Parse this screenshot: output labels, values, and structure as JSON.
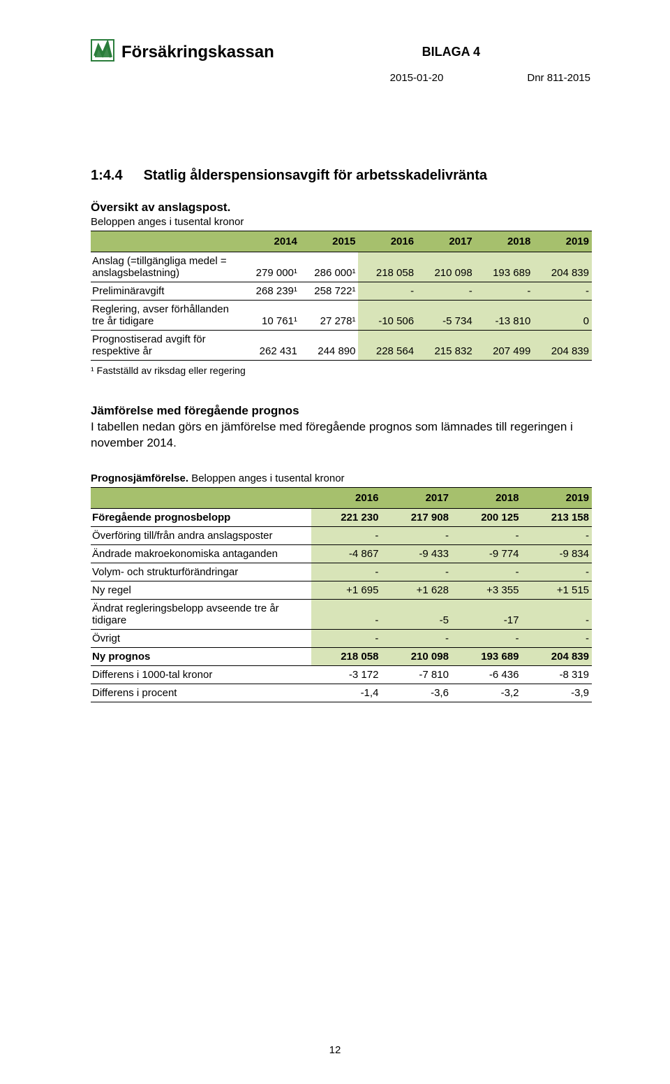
{
  "brand": "Försäkringskassan",
  "bilaga": "BILAGA 4",
  "date": "2015-01-20",
  "dnr": "Dnr 811-2015",
  "section_number": "1:4.4",
  "section_title": "Statlig ålderspensionsavgift för arbetsskadelivränta",
  "overview_heading": "Översikt av anslagspost.",
  "overview_caption": "Beloppen anges i tusental kronor",
  "table1": {
    "header_bg": "#a6c06d",
    "shade_bg": "#d8e4b8",
    "border_color": "#000000",
    "col_widths": [
      "30%",
      "11.6%",
      "11.6%",
      "11.6%",
      "11.6%",
      "11.6%",
      "11.6%"
    ],
    "head": [
      "",
      "2014",
      "2015",
      "2016",
      "2017",
      "2018",
      "2019"
    ],
    "rows": [
      {
        "label": "Anslag (=tillgängliga medel = anslagsbelastning)",
        "cells": [
          "279 000¹",
          "286 000¹",
          "218 058",
          "210 098",
          "193 689",
          "204 839"
        ],
        "shade_from": 2
      },
      {
        "label": "Preliminäravgift",
        "cells": [
          "268 239¹",
          "258 722¹",
          "-",
          "-",
          "-",
          "-"
        ],
        "shade_from": 2
      },
      {
        "label": "Reglering, avser förhållanden tre år tidigare",
        "cells": [
          "10 761¹",
          "27 278¹",
          "-10 506",
          "-5 734",
          "-13 810",
          "0"
        ],
        "shade_from": 2
      },
      {
        "label": "Prognostiserad avgift för respektive år",
        "cells": [
          "262 431",
          "244 890",
          "228 564",
          "215 832",
          "207 499",
          "204 839"
        ],
        "shade_from": 2
      }
    ]
  },
  "footnote1": "¹ Fastställd av riksdag eller regering",
  "compare_heading": "Jämförelse med föregående prognos",
  "compare_para": "I tabellen nedan görs en jämförelse med föregående prognos som lämnades till regeringen i november 2014.",
  "compare_caption_bold": "Prognosjämförelse.",
  "compare_caption_rest": " Beloppen anges i tusental kronor",
  "table2": {
    "header_bg": "#a6c06d",
    "shade_bg": "#d8e4b8",
    "border_color": "#000000",
    "col_widths": [
      "44%",
      "14%",
      "14%",
      "14%",
      "14%"
    ],
    "head": [
      "",
      "2016",
      "2017",
      "2018",
      "2019"
    ],
    "rows": [
      {
        "label": "Föregående prognosbelopp",
        "cells": [
          "221 230",
          "217 908",
          "200 125",
          "213 158"
        ],
        "bold": true,
        "shade": true
      },
      {
        "label": "Överföring till/från andra anslagsposter",
        "cells": [
          "-",
          "-",
          "-",
          "-"
        ],
        "shade": true
      },
      {
        "label": "Ändrade makroekonomiska antaganden",
        "cells": [
          "-4 867",
          "-9 433",
          "-9 774",
          "-9 834"
        ],
        "shade": true
      },
      {
        "label": "Volym- och strukturförändringar",
        "cells": [
          "-",
          "-",
          "-",
          "-"
        ],
        "shade": true
      },
      {
        "label": "Ny regel",
        "cells": [
          "+1 695",
          "+1 628",
          "+3 355",
          "+1 515"
        ],
        "shade": true
      },
      {
        "label": "Ändrat regleringsbelopp avseende tre år tidigare",
        "cells": [
          "-",
          "-5",
          "-17",
          "-"
        ],
        "shade": true
      },
      {
        "label": "Övrigt",
        "cells": [
          "-",
          "-",
          "-",
          "-"
        ],
        "shade": true
      },
      {
        "label": "Ny prognos",
        "cells": [
          "218 058",
          "210 098",
          "193 689",
          "204 839"
        ],
        "bold": true,
        "shade": true
      },
      {
        "label": "Differens i 1000-tal kronor",
        "cells": [
          "-3 172",
          "-7 810",
          "-6 436",
          "-8 319"
        ],
        "shade": false
      },
      {
        "label": "Differens i procent",
        "cells": [
          "-1,4",
          "-3,6",
          "-3,2",
          "-3,9"
        ],
        "shade": false
      }
    ]
  },
  "page_number": "12",
  "logo": {
    "border_color": "#2a7d3b",
    "fill_color": "#2a7d3b",
    "bg": "#ffffff",
    "width": 34,
    "height": 32
  }
}
